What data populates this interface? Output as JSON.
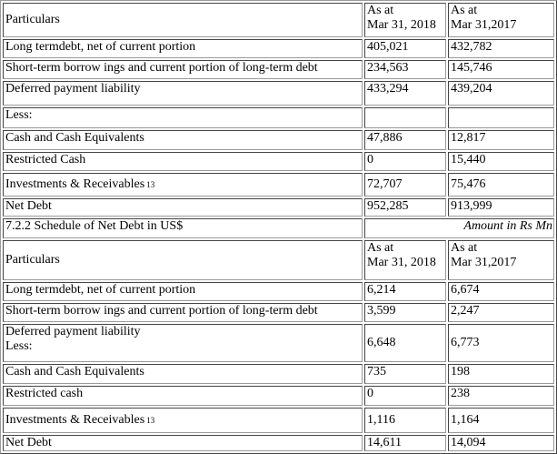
{
  "table1": {
    "header": {
      "particulars": "Particulars",
      "col1": "As at Mar 31, 2018",
      "col1_l1": "As at",
      "col1_l2": "Mar 31, 2018",
      "col2_l1": "As at",
      "col2_l2": "Mar 31,2017"
    },
    "rows": [
      {
        "label": "Long termdebt, net of current portion",
        "v2018": "405,021",
        "v2017": "432,782"
      },
      {
        "label": "Short-term borrow ings and current portion of long-term debt",
        "v2018": "234,563",
        "v2017": "145,746"
      },
      {
        "label": "Deferred payment liability",
        "v2018": "433,294",
        "v2017": "439,204"
      },
      {
        "label": "Less:",
        "v2018": "",
        "v2017": ""
      },
      {
        "label": "Cash and Cash Equivalents",
        "v2018": "47,886",
        "v2017": "12,817"
      },
      {
        "label": "Restricted Cash",
        "v2018": "0",
        "v2017": "15,440"
      },
      {
        "label": "Investments & Receivables",
        "sup": "13",
        "v2018": "72,707",
        "v2017": "75,476"
      },
      {
        "label": "Net Debt",
        "v2018": "952,285",
        "v2017": "913,999"
      }
    ]
  },
  "section": {
    "title": "7.2.2 Schedule of Net Debt in US$",
    "unit_note": "Amount in Rs Mn"
  },
  "table2": {
    "header": {
      "particulars": "Particulars",
      "col1_l1": "As at",
      "col1_l2": "Mar 31, 2018",
      "col2_l1": "As at",
      "col2_l2": "Mar 31,2017"
    },
    "rows": [
      {
        "label": "Long termdebt, net of current portion",
        "v2018": "6,214",
        "v2017": "6,674"
      },
      {
        "label": "Short-term borrow ings and current portion of long-term debt",
        "v2018": "3,599",
        "v2017": "2,247"
      },
      {
        "label_l1": "Deferred payment liability",
        "label_l2": "Less:",
        "v2018": "6,648",
        "v2017": "6,773"
      },
      {
        "label": "Cash and Cash Equivalents",
        "v2018": "735",
        "v2017": "198"
      },
      {
        "label": "Restricted cash",
        "v2018": "0",
        "v2017": "238"
      },
      {
        "label": "Investments & Receivables",
        "sup": "13",
        "v2018": "1,116",
        "v2017": "1,164"
      },
      {
        "label": "Net Debt",
        "v2018": "14,611",
        "v2017": "14,094"
      }
    ]
  }
}
